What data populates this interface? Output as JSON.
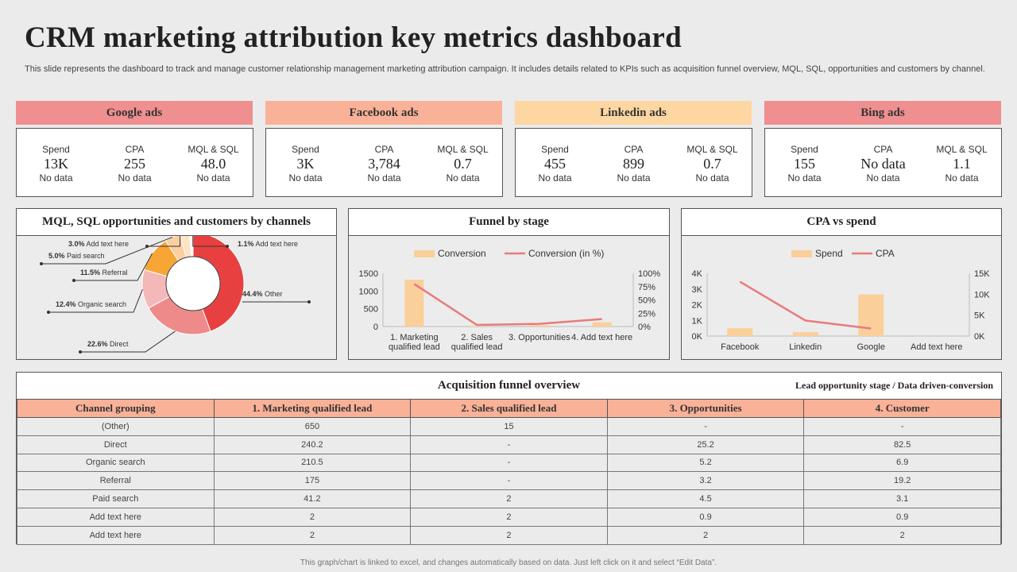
{
  "title": "CRM marketing attribution key metrics dashboard",
  "description": "This slide represents the dashboard to track and manage customer relationship management marketing attribution campaign. It includes details related to KPIs such as acquisition funnel overview, MQL,  SQL, opportunities and customers by channel.",
  "colors": {
    "red": "#e84040",
    "salmon": "#ef8a8a",
    "pink": "#f4b8b8",
    "orange": "#f7a535",
    "peach": "#fbcfa0",
    "bar": "#fbcf9a",
    "line": "#e77b7b",
    "header_pink": "#ef8f8f",
    "header_orange": "#f9b197",
    "header_yellow": "#fdd6a2"
  },
  "ads": [
    {
      "name": "Google ads",
      "color": "#ef8f8f",
      "metrics": [
        {
          "label": "Spend",
          "value": "13K",
          "note": "No data"
        },
        {
          "label": "CPA",
          "value": "255",
          "note": "No data"
        },
        {
          "label": "MQL & SQL",
          "value": "48.0",
          "note": "No data"
        }
      ]
    },
    {
      "name": "Facebook ads",
      "color": "#f9b197",
      "metrics": [
        {
          "label": "Spend",
          "value": "3K",
          "note": "No data"
        },
        {
          "label": "CPA",
          "value": "3,784",
          "note": "No data"
        },
        {
          "label": "MQL & SQL",
          "value": "0.7",
          "note": "No data"
        }
      ]
    },
    {
      "name": "Linkedin ads",
      "color": "#fdd6a2",
      "metrics": [
        {
          "label": "Spend",
          "value": "455",
          "note": "No data"
        },
        {
          "label": "CPA",
          "value": "899",
          "note": "No data"
        },
        {
          "label": "MQL & SQL",
          "value": "0.7",
          "note": "No data"
        }
      ]
    },
    {
      "name": "Bing ads",
      "color": "#ef8f8f",
      "metrics": [
        {
          "label": "Spend",
          "value": "155",
          "note": "No data"
        },
        {
          "label": "CPA",
          "value": "No data",
          "note": "No data"
        },
        {
          "label": "MQL & SQL",
          "value": "1.1",
          "note": "No data"
        }
      ]
    }
  ],
  "panels": {
    "donut_title": "MQL, SQL opportunities and customers by channels",
    "funnel_title": "Funnel by stage",
    "cpa_title": "CPA vs spend"
  },
  "chart_data": [
    {
      "type": "pie",
      "title": "MQL, SQL opportunities and customers by channels",
      "slices": [
        {
          "label": "Other",
          "value": 44.4,
          "color": "#e84040"
        },
        {
          "label": "Direct",
          "value": 22.6,
          "color": "#ef8a8a"
        },
        {
          "label": "Organic search",
          "value": 12.4,
          "color": "#f4b8b8"
        },
        {
          "label": "Referral",
          "value": 11.5,
          "color": "#f7a535"
        },
        {
          "label": "Paid search",
          "value": 5.0,
          "color": "#fbcfa0"
        },
        {
          "label": "Add text here",
          "value": 3.0,
          "color": "#fde3c8"
        },
        {
          "label": "Add text here",
          "value": 1.1,
          "color": "#ffffff"
        }
      ]
    },
    {
      "type": "bar",
      "title": "Funnel by stage",
      "categories": [
        "1. Marketing qualified lead",
        "2. Sales qualified lead",
        "3. Opportunities",
        "4. Add text here"
      ],
      "series": [
        {
          "name": "Conversion",
          "values": [
            1320,
            20,
            40,
            120
          ],
          "axis": "left"
        },
        {
          "name": "Conversion (in %)",
          "values": [
            80,
            3,
            5,
            14
          ],
          "axis": "right",
          "kind": "line"
        }
      ],
      "y_ticks": [
        "0",
        "500",
        "1000",
        "1500"
      ],
      "ylim": [
        0,
        1500
      ],
      "y2_ticks": [
        "0%",
        "25%",
        "50%",
        "75%",
        "100%"
      ],
      "y2lim": [
        0,
        100
      ],
      "legend": "top"
    },
    {
      "type": "bar",
      "title": "CPA vs spend",
      "categories": [
        "Facebook",
        "Linkedin",
        "Google",
        "Add text here"
      ],
      "series": [
        {
          "name": "Spend",
          "values": [
            500,
            250,
            2650,
            0
          ],
          "axis": "left"
        },
        {
          "name": "CPA",
          "values": [
            13000,
            3700,
            1800,
            null
          ],
          "axis": "right",
          "kind": "line"
        }
      ],
      "y_ticks": [
        "0K",
        "1K",
        "2K",
        "3K",
        "4K"
      ],
      "ylim": [
        0,
        4000
      ],
      "y2_ticks": [
        "0K",
        "5K",
        "10K",
        "15K"
      ],
      "y2lim": [
        0,
        15000
      ],
      "legend": "top"
    }
  ],
  "table": {
    "title": "Acquisition funnel overview",
    "subtitle": "Lead opportunity stage / Data driven-conversion",
    "headers": [
      "Channel grouping",
      "1. Marketing qualified lead",
      "2. Sales qualified lead",
      "3. Opportunities",
      "4. Customer"
    ],
    "rows": [
      [
        "(Other)",
        "650",
        "15",
        "-",
        "-"
      ],
      [
        "Direct",
        "240.2",
        "-",
        "25.2",
        "82.5"
      ],
      [
        "Organic search",
        "210.5",
        "-",
        "5.2",
        "6.9"
      ],
      [
        "Referral",
        "175",
        "-",
        "3.2",
        "19.2"
      ],
      [
        "Paid search",
        "41.2",
        "2",
        "4.5",
        "3.1"
      ],
      [
        "Add text here",
        "2",
        "2",
        "0.9",
        "0.9"
      ],
      [
        "Add text here",
        "2",
        "2",
        "2",
        "2"
      ]
    ]
  },
  "footer": "This graph/chart is linked to excel, and changes automatically based on data. Just left click on it and select “Edit Data”."
}
